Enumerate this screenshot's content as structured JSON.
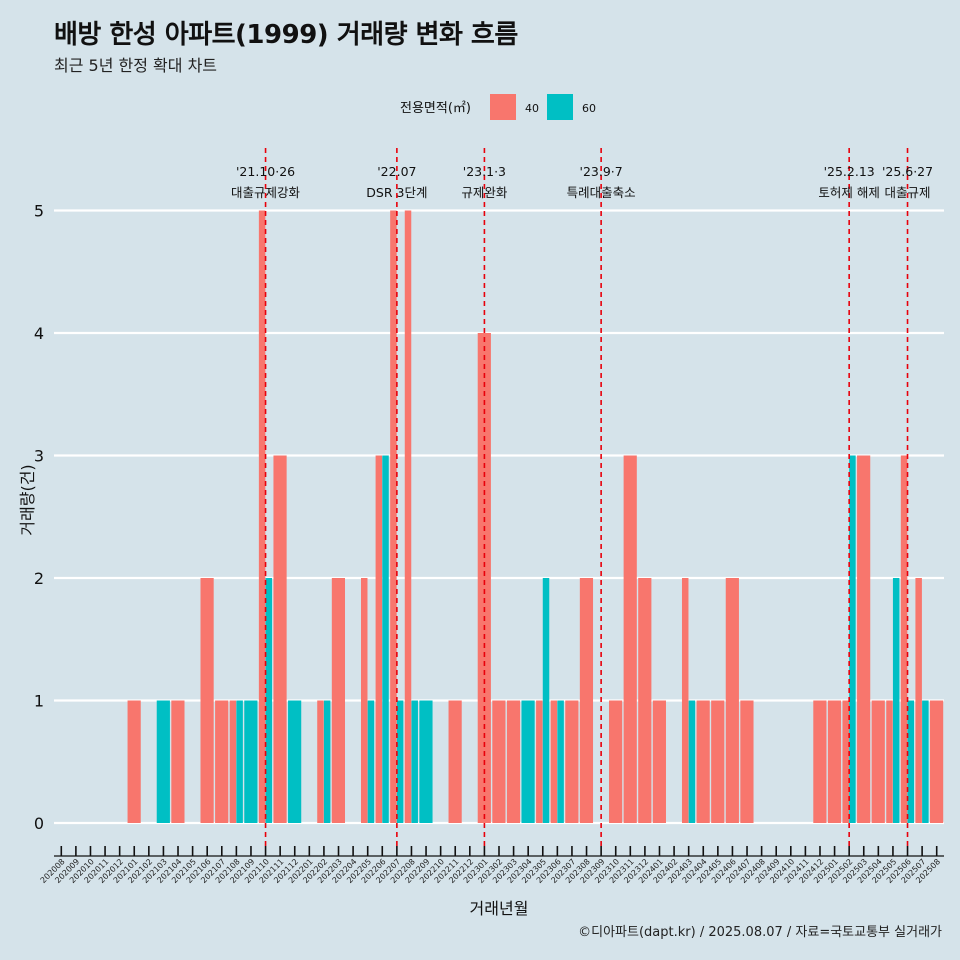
{
  "title": "배방 한성 아파트(1999) 거래량 변화 흐름",
  "subtitle": "최근 5년 한정 확대 차트",
  "caption": "©디아파트(dapt.kr) / 2025.08.07 / 자료=국토교통부 실거래가",
  "chart_data": {
    "type": "bar",
    "xlabel": "거래년월",
    "ylabel": "거래량(건)",
    "ylim": [
      0,
      5
    ],
    "yticks": [
      0,
      1,
      2,
      3,
      4,
      5
    ],
    "legend": {
      "title": "전용면적(㎡)",
      "placement": "top"
    },
    "categories": [
      "202008",
      "202009",
      "202010",
      "202011",
      "202012",
      "202101",
      "202102",
      "202103",
      "202104",
      "202105",
      "202106",
      "202107",
      "202108",
      "202109",
      "202110",
      "202111",
      "202112",
      "202201",
      "202202",
      "202203",
      "202204",
      "202205",
      "202206",
      "202207",
      "202208",
      "202209",
      "202210",
      "202211",
      "202212",
      "202301",
      "202302",
      "202303",
      "202304",
      "202305",
      "202306",
      "202307",
      "202308",
      "202309",
      "202310",
      "202311",
      "202312",
      "202401",
      "202402",
      "202403",
      "202404",
      "202405",
      "202406",
      "202407",
      "202408",
      "202409",
      "202410",
      "202411",
      "202412",
      "202501",
      "202502",
      "202503",
      "202504",
      "202505",
      "202506",
      "202507",
      "202508"
    ],
    "series": [
      {
        "name": "40",
        "color": "#f8766d",
        "values": [
          0,
          0,
          0,
          0,
          0,
          1,
          0,
          0,
          1,
          0,
          2,
          1,
          1,
          0,
          5,
          3,
          0,
          0,
          1,
          2,
          0,
          2,
          3,
          5,
          5,
          0,
          0,
          1,
          0,
          4,
          1,
          1,
          0,
          1,
          1,
          1,
          2,
          0,
          1,
          3,
          2,
          1,
          0,
          2,
          1,
          1,
          2,
          1,
          0,
          0,
          0,
          0,
          1,
          1,
          1,
          3,
          1,
          1,
          3,
          2,
          1
        ]
      },
      {
        "name": "60",
        "color": "#00bfc4",
        "values": [
          0,
          0,
          0,
          0,
          0,
          0,
          0,
          1,
          0,
          0,
          0,
          0,
          1,
          1,
          2,
          0,
          1,
          0,
          1,
          0,
          0,
          1,
          3,
          1,
          1,
          1,
          0,
          0,
          0,
          0,
          0,
          0,
          1,
          2,
          1,
          0,
          0,
          0,
          0,
          0,
          0,
          0,
          0,
          1,
          0,
          0,
          0,
          0,
          0,
          0,
          0,
          0,
          0,
          0,
          3,
          0,
          0,
          2,
          1,
          1,
          0
        ]
      }
    ],
    "annotations": [
      {
        "date": "'21.10·26",
        "label": "대출규제강화",
        "category": "202110"
      },
      {
        "date": "'22.07",
        "label": "DSR 3단계",
        "category": "202207"
      },
      {
        "date": "'23.1·3",
        "label": "규제완화",
        "category": "202301"
      },
      {
        "date": "'23.9·7",
        "label": "특례대출축소",
        "category": "202309"
      },
      {
        "date": "'25.2.13",
        "label": "토허제 해제",
        "category": "202502"
      },
      {
        "date": "'25.6·27",
        "label": "대출규제",
        "category": "202506"
      }
    ]
  }
}
